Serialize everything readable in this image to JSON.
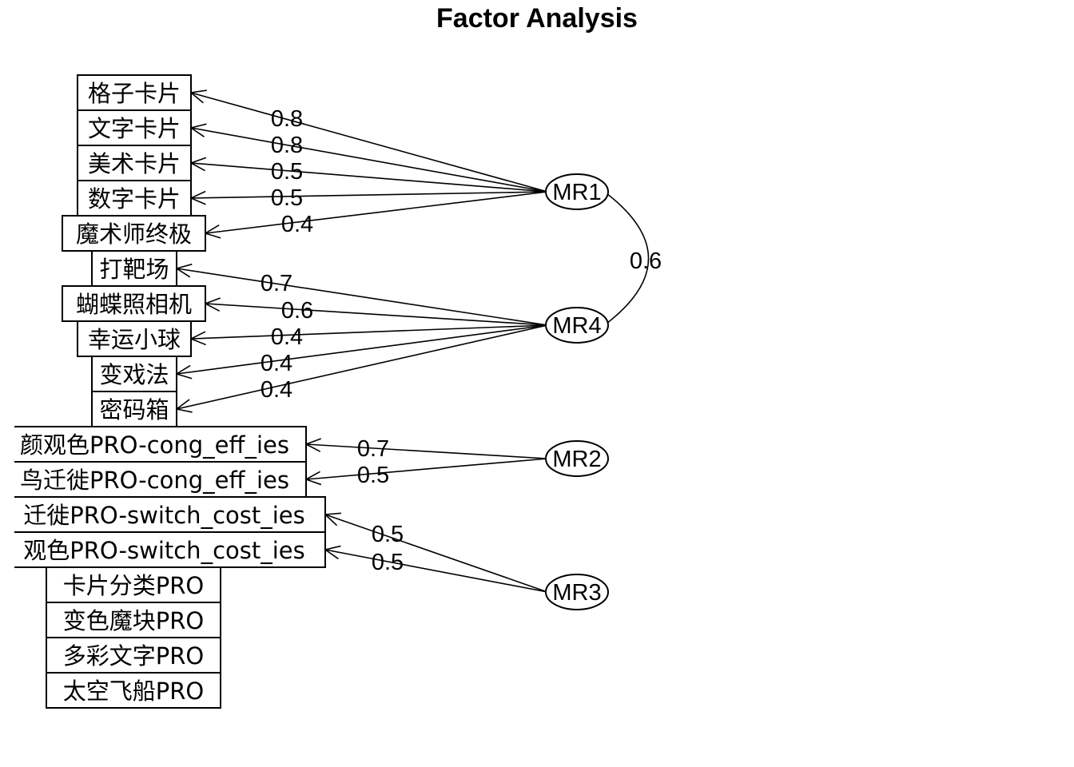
{
  "title": "Factor Analysis",
  "variables": [
    "格子卡片",
    "文字卡片",
    "美术卡片",
    "数字卡片",
    "魔术师终极",
    "打靶场",
    "蝴蝶照相机",
    "幸运小球",
    "变戏法",
    "密码箱",
    "颜观色PRO-cong_eff_ies",
    "鸟迁徙PRO-cong_eff_ies",
    "迁徙PRO-switch_cost_ies",
    "观色PRO-switch_cost_ies",
    "卡片分类PRO",
    "变色魔块PRO",
    "多彩文字PRO",
    "太空飞船PRO"
  ],
  "factors": [
    "MR1",
    "MR4",
    "MR2",
    "MR3"
  ],
  "loadings": [
    {
      "factor": "MR1",
      "variable": "格子卡片",
      "label": "0.8"
    },
    {
      "factor": "MR1",
      "variable": "文字卡片",
      "label": "0.8"
    },
    {
      "factor": "MR1",
      "variable": "美术卡片",
      "label": "0.5"
    },
    {
      "factor": "MR1",
      "variable": "数字卡片",
      "label": "0.5"
    },
    {
      "factor": "MR1",
      "variable": "魔术师终极",
      "label": "0.4"
    },
    {
      "factor": "MR4",
      "variable": "打靶场",
      "label": "0.7"
    },
    {
      "factor": "MR4",
      "variable": "蝴蝶照相机",
      "label": "0.6"
    },
    {
      "factor": "MR4",
      "variable": "幸运小球",
      "label": "0.4"
    },
    {
      "factor": "MR4",
      "variable": "变戏法",
      "label": "0.4"
    },
    {
      "factor": "MR4",
      "variable": "密码箱",
      "label": "0.4"
    },
    {
      "factor": "MR2",
      "variable": "颜观色PRO-cong_eff_ies",
      "label": "0.7"
    },
    {
      "factor": "MR2",
      "variable": "鸟迁徙PRO-cong_eff_ies",
      "label": "0.5"
    },
    {
      "factor": "MR3",
      "variable": "迁徙PRO-switch_cost_ies",
      "label": "0.5"
    },
    {
      "factor": "MR3",
      "variable": "观色PRO-switch_cost_ies",
      "label": "0.5"
    }
  ],
  "correlations": [
    {
      "from": "MR1",
      "to": "MR4",
      "label": "0.6"
    }
  ]
}
